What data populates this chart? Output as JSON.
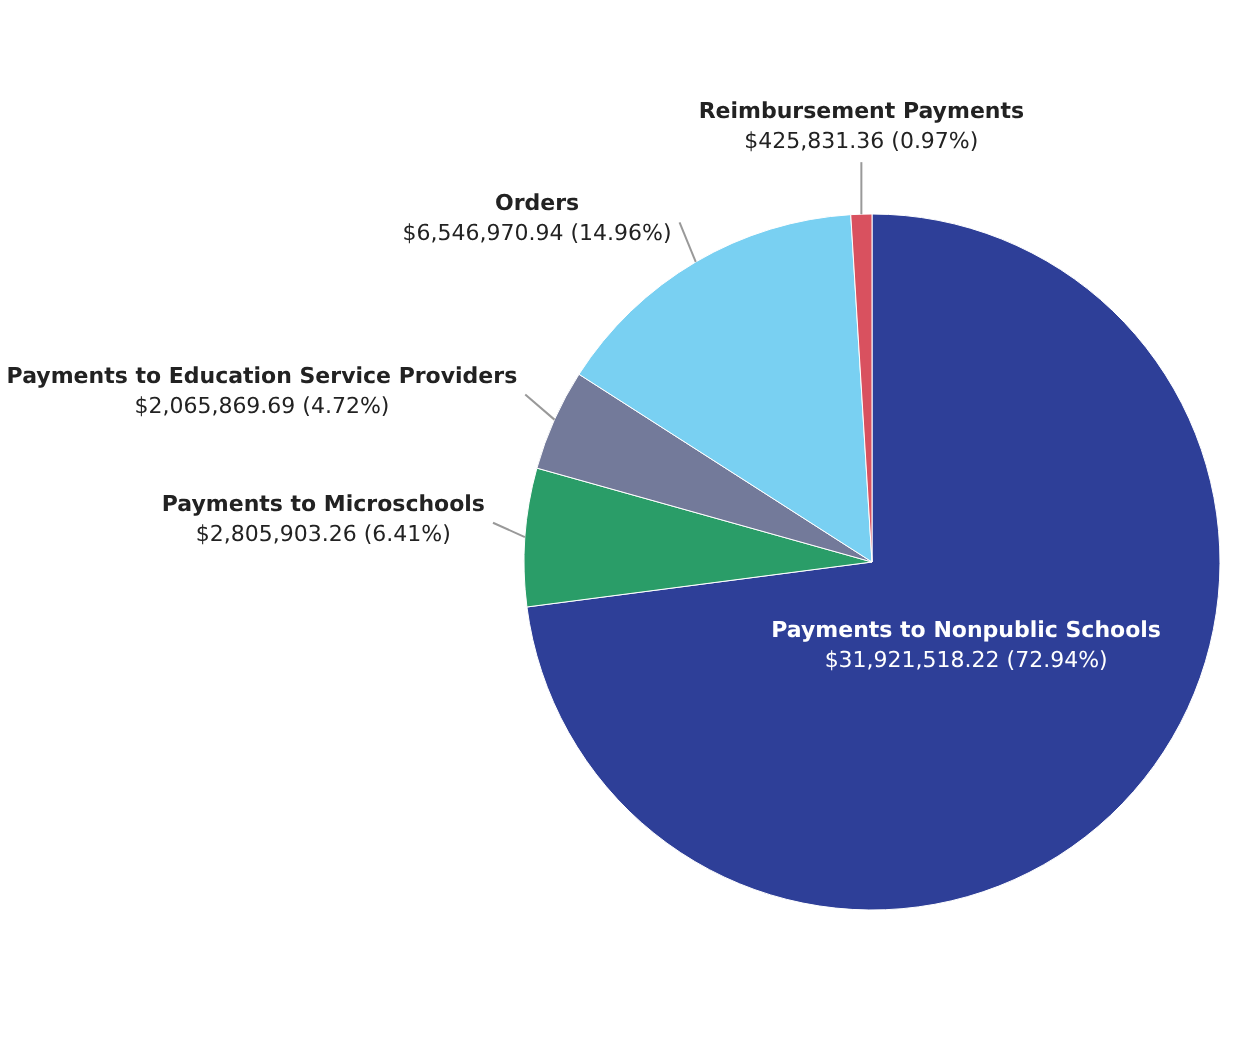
{
  "chart_data": {
    "type": "pie",
    "categories": [
      "Payments to Nonpublic Schools",
      "Payments to Microschools",
      "Payments to Education Service Providers",
      "Orders",
      "Reimbursement Payments"
    ],
    "values": [
      31921518.22,
      2805903.26,
      2065869.69,
      6546970.94,
      425831.36
    ],
    "value_labels": [
      "$31,921,518.22 (72.94%)",
      "$2,805,903.26 (6.41%)",
      "$2,065,869.69 (4.72%)",
      "$6,546,970.94 (14.96%)",
      "$425,831.36 (0.97%)"
    ],
    "colors": [
      "#2e3f98",
      "#2a9d68",
      "#737a9a",
      "#79d0f2",
      "#d9515f"
    ],
    "legend": false
  }
}
